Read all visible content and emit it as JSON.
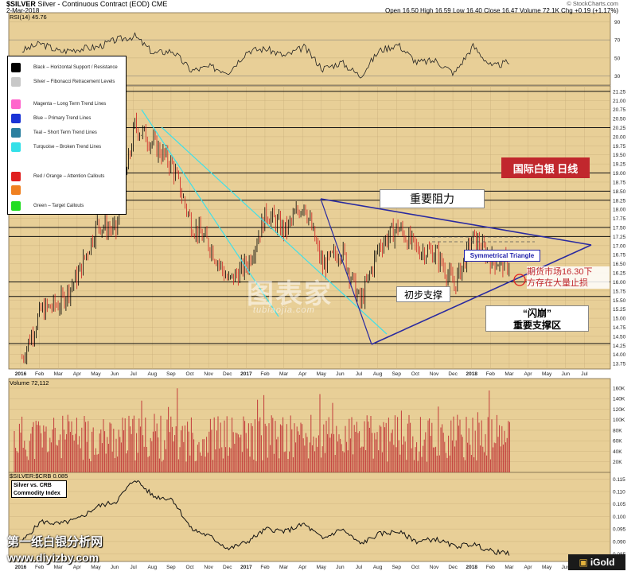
{
  "header": {
    "symbol": "$SILVER",
    "description": "Silver - Continuous Contract (EOD)",
    "exchange": "CME",
    "date": "2-Mar-2018",
    "credit": "© StockCharts.com",
    "ohlc_text": "Open 16.50  High 16.59  Low 16.40  Close 16.47  Volume 72.1K  Chg +0.19 (+1.17%)"
  },
  "legend": {
    "items": [
      {
        "label": "Black – Horizontal Support / Resistance",
        "color": "#000000"
      },
      {
        "label": "Silver – Fibonacci Retracement Levels",
        "color": "#c8c8c8"
      },
      {
        "label": "Magenta – Long Term Trend Lines",
        "color": "#ff66cc"
      },
      {
        "label": "Blue – Primary Trend Lines",
        "color": "#1a33d6"
      },
      {
        "label": "Teal – Short Term Trend Lines",
        "color": "#2a7f9f"
      },
      {
        "label": "Turquoise – Broken Trend Lines",
        "color": "#33e0e8"
      },
      {
        "label": "Red / Orange – Attention Callouts",
        "color_a": "#e02020",
        "color_b": "#f08020"
      },
      {
        "label": "Green – Target Callouts",
        "color": "#22dd22"
      }
    ]
  },
  "annotations": {
    "title_cn": "国际白银 日线",
    "resistance": "重要阻力",
    "initial_support": "初步支撑",
    "crash_line1": "“闪崩”",
    "crash_line2": "重要支撑区",
    "symmetrical_triangle": "Symmetrical Triangle",
    "futures_note_line1": "期货市场16.30下",
    "futures_note_line2": "方存在大量止损"
  },
  "watermark": {
    "cn": "图表家",
    "en": "tubiaojia.com"
  },
  "footer": {
    "site_cn": "第一纸白银分析网",
    "site_url": "www.diyizby.com",
    "brand": "iGold"
  },
  "colors": {
    "panel_bg": "#e8cf97",
    "grid": "#c9b07c",
    "candle_up": "#000000",
    "candle_down": "#d02020",
    "trend_blue": "#2a2aa0",
    "turquoise": "#40e0e8",
    "volume": "#c23b3b"
  },
  "chart_data": [
    {
      "type": "line",
      "title": "RSI(14) 45.76",
      "ylim": [
        20,
        100
      ],
      "y_ticks": [
        90,
        70,
        50,
        30
      ],
      "x": [
        "2016-01",
        "2016-02",
        "2016-03",
        "2016-04",
        "2016-05",
        "2016-06",
        "2016-07",
        "2016-08",
        "2016-09",
        "2016-10",
        "2016-11",
        "2016-12",
        "2017-01",
        "2017-02",
        "2017-03",
        "2017-04",
        "2017-05",
        "2017-06",
        "2017-07",
        "2017-08",
        "2017-09",
        "2017-10",
        "2017-11",
        "2017-12",
        "2018-01",
        "2018-02",
        "2018-03"
      ],
      "series": [
        {
          "values": [
            58,
            66,
            57,
            60,
            62,
            70,
            74,
            55,
            58,
            36,
            40,
            35,
            58,
            60,
            52,
            62,
            38,
            45,
            30,
            58,
            65,
            45,
            47,
            33,
            63,
            40,
            46
          ]
        }
      ]
    },
    {
      "type": "line",
      "title": "$SILVER Silver - Continuous Contract (EOD) Daily",
      "ylim": [
        13.6,
        21.4
      ],
      "y_ticks": [
        21.25,
        21.0,
        20.75,
        20.5,
        20.25,
        20.0,
        19.75,
        19.5,
        19.25,
        19.0,
        18.75,
        18.5,
        18.25,
        18.0,
        17.75,
        17.5,
        17.25,
        17.0,
        16.75,
        16.5,
        16.25,
        16.0,
        15.75,
        15.5,
        15.25,
        15.0,
        14.75,
        14.5,
        14.25,
        14.0,
        13.75
      ],
      "x_labels": [
        "2016",
        "Feb",
        "Mar",
        "Apr",
        "May",
        "Jun",
        "Jul",
        "Aug",
        "Sep",
        "Oct",
        "Nov",
        "Dec",
        "2017",
        "Feb",
        "Mar",
        "Apr",
        "May",
        "Jun",
        "Jul",
        "Aug",
        "Sep",
        "Oct",
        "Nov",
        "Dec",
        "2018",
        "Feb",
        "Mar",
        "Apr",
        "May",
        "Jun",
        "Jul"
      ],
      "x": [
        "2016-01",
        "2016-02",
        "2016-03",
        "2016-04",
        "2016-05",
        "2016-06",
        "2016-07",
        "2016-08",
        "2016-09",
        "2016-10",
        "2016-11",
        "2016-12",
        "2017-01",
        "2017-02",
        "2017-03",
        "2017-04",
        "2017-05",
        "2017-06",
        "2017-07",
        "2017-08",
        "2017-09",
        "2017-10",
        "2017-11",
        "2017-12",
        "2018-01",
        "2018-02",
        "2018-03"
      ],
      "series": [
        {
          "values": [
            13.9,
            15.2,
            15.4,
            16.2,
            17.6,
            17.4,
            20.3,
            19.8,
            19.2,
            17.6,
            17.0,
            16.0,
            16.5,
            17.9,
            17.4,
            18.2,
            16.4,
            16.9,
            15.4,
            17.0,
            17.5,
            16.9,
            16.8,
            15.9,
            17.2,
            16.6,
            16.47
          ]
        }
      ],
      "horizontal_levels": [
        21.25,
        20.25,
        19.0,
        18.5,
        18.25,
        17.5,
        17.25,
        16.0,
        15.6,
        14.3
      ],
      "fib_levels": [
        17.48,
        17.35
      ]
    },
    {
      "type": "bar",
      "title": "Volume 72,112",
      "ylim": [
        0,
        175000
      ],
      "y_ticks": [
        160000,
        140000,
        120000,
        100000,
        80000,
        60000,
        40000,
        20000
      ]
    },
    {
      "type": "line",
      "title": "$SILVER:$CRB 0.085",
      "legend": "Silver vs. CRB Commodity Index",
      "ylim": [
        0.082,
        0.117
      ],
      "y_ticks": [
        0.115,
        0.11,
        0.105,
        0.1,
        0.095,
        0.09,
        0.085
      ],
      "x": [
        "2016-01",
        "2016-02",
        "2016-03",
        "2016-04",
        "2016-05",
        "2016-06",
        "2016-07",
        "2016-08",
        "2016-09",
        "2016-10",
        "2016-11",
        "2016-12",
        "2017-01",
        "2017-02",
        "2017-03",
        "2017-04",
        "2017-05",
        "2017-06",
        "2017-07",
        "2017-08",
        "2017-09",
        "2017-10",
        "2017-11",
        "2017-12",
        "2018-01",
        "2018-02",
        "2018-03"
      ],
      "series": [
        {
          "values": [
            0.09,
            0.098,
            0.097,
            0.099,
            0.104,
            0.106,
            0.115,
            0.108,
            0.107,
            0.095,
            0.092,
            0.087,
            0.09,
            0.095,
            0.094,
            0.097,
            0.091,
            0.095,
            0.089,
            0.093,
            0.094,
            0.09,
            0.091,
            0.088,
            0.089,
            0.086,
            0.085
          ]
        }
      ]
    }
  ]
}
